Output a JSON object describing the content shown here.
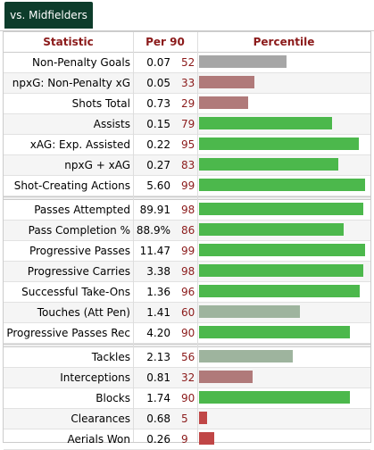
{
  "tab": {
    "label": "vs. Midfielders"
  },
  "header": {
    "statistic": "Statistic",
    "per90": "Per 90",
    "percentile": "Percentile"
  },
  "colors": {
    "high": "#4cb84c",
    "mid": "#9eb49e",
    "low": "#b07a7a",
    "verylow": "#c04646",
    "tab_bg": "#0d3c2b",
    "accent": "#8b1a1a"
  },
  "groups": [
    [
      {
        "stat": "Non-Penalty Goals",
        "value": "0.07",
        "pct": 52,
        "tier": "grey"
      },
      {
        "stat": "npxG: Non-Penalty xG",
        "value": "0.05",
        "pct": 33,
        "tier": "low"
      },
      {
        "stat": "Shots Total",
        "value": "0.73",
        "pct": 29,
        "tier": "low"
      },
      {
        "stat": "Assists",
        "value": "0.15",
        "pct": 79,
        "tier": "high"
      },
      {
        "stat": "xAG: Exp. Assisted Goals",
        "value": "0.22",
        "pct": 95,
        "tier": "high"
      },
      {
        "stat": "npxG + xAG",
        "value": "0.27",
        "pct": 83,
        "tier": "high"
      },
      {
        "stat": "Shot-Creating Actions",
        "value": "5.60",
        "pct": 99,
        "tier": "high"
      }
    ],
    [
      {
        "stat": "Passes Attempted",
        "value": "89.91",
        "pct": 98,
        "tier": "high"
      },
      {
        "stat": "Pass Completion %",
        "value": "88.9%",
        "pct": 86,
        "tier": "high"
      },
      {
        "stat": "Progressive Passes",
        "value": "11.47",
        "pct": 99,
        "tier": "high"
      },
      {
        "stat": "Progressive Carries",
        "value": "3.38",
        "pct": 98,
        "tier": "high"
      },
      {
        "stat": "Successful Take-Ons",
        "value": "1.36",
        "pct": 96,
        "tier": "high"
      },
      {
        "stat": "Touches (Att Pen)",
        "value": "1.41",
        "pct": 60,
        "tier": "mid"
      },
      {
        "stat": "Progressive Passes Rec",
        "value": "4.20",
        "pct": 90,
        "tier": "high"
      }
    ],
    [
      {
        "stat": "Tackles",
        "value": "2.13",
        "pct": 56,
        "tier": "mid"
      },
      {
        "stat": "Interceptions",
        "value": "0.81",
        "pct": 32,
        "tier": "low"
      },
      {
        "stat": "Blocks",
        "value": "1.74",
        "pct": 90,
        "tier": "high"
      },
      {
        "stat": "Clearances",
        "value": "0.68",
        "pct": 5,
        "tier": "verylow"
      },
      {
        "stat": "Aerials Won",
        "value": "0.26",
        "pct": 9,
        "tier": "verylow"
      }
    ]
  ]
}
